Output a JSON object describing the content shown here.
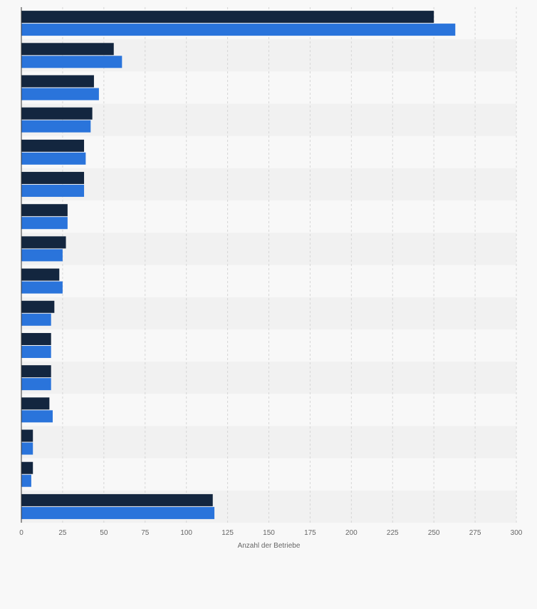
{
  "chart_data": {
    "type": "bar",
    "orientation": "horizontal",
    "title": "",
    "xlabel": "Anzahl der Betriebe",
    "ylabel": "",
    "xlim": [
      0,
      300
    ],
    "xticks": [
      0,
      25,
      50,
      75,
      100,
      125,
      150,
      175,
      200,
      225,
      250,
      275,
      300
    ],
    "grid": true,
    "legend": "none",
    "categories": [
      "",
      "",
      "",
      "",
      "",
      "",
      "",
      "",
      "",
      "",
      "",
      "",
      "",
      "",
      "",
      ""
    ],
    "series": [
      {
        "color": "#13263f",
        "values": [
          250,
          56,
          44,
          43,
          38,
          38,
          28,
          27,
          23,
          20,
          18,
          18,
          17,
          7,
          7,
          116
        ]
      },
      {
        "color": "#2a74db",
        "values": [
          263,
          61,
          47,
          42,
          39,
          38,
          28,
          25,
          25,
          18,
          18,
          18,
          19,
          7,
          6,
          117
        ]
      }
    ]
  },
  "colors": {
    "background": "#f8f8f8",
    "band_alt": "#f1f1f1",
    "grid": "#d6d6d6",
    "axis": "#333333",
    "tick_text": "#666666"
  }
}
